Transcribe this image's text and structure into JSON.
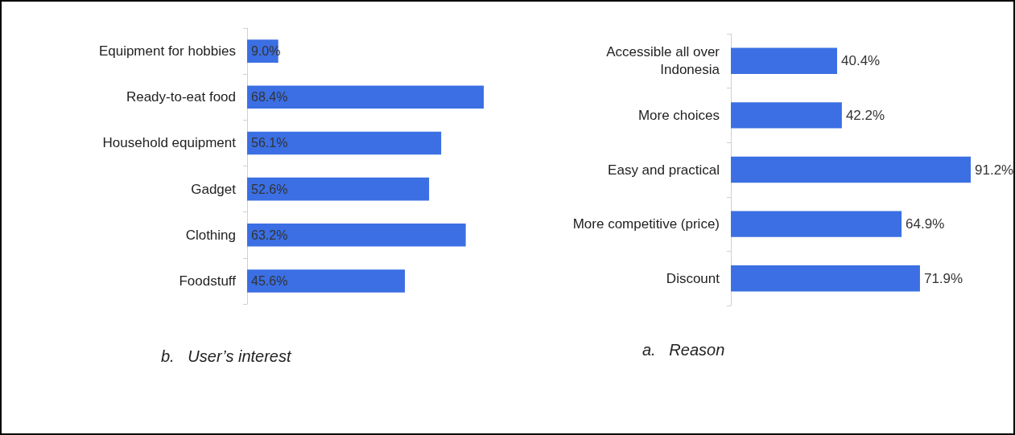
{
  "chart_data": [
    {
      "type": "bar",
      "orientation": "horizontal",
      "title": "b.   User’s interest",
      "categories": [
        "Equipment for hobbies",
        "Ready-to-eat food",
        "Household equipment",
        "Gadget",
        "Clothing",
        "Foodstuff"
      ],
      "values": [
        9.0,
        68.4,
        56.1,
        52.6,
        63.2,
        45.6
      ],
      "value_labels": [
        "9.0%",
        "68.4%",
        "56.1%",
        "52.6%",
        "63.2%",
        "45.6%"
      ],
      "color": "#3b6fe3",
      "tick_labels": "y"
    },
    {
      "type": "bar",
      "orientation": "horizontal",
      "title": "a.   Reason",
      "categories": [
        "Accessible all over\nIndonesia",
        "More choices",
        "Easy and practical",
        "More competitive (price)",
        "Discount"
      ],
      "values": [
        40.4,
        42.2,
        91.2,
        64.9,
        71.9
      ],
      "value_labels": [
        "40.4%",
        "42.2%",
        "91.2%",
        "64.9%",
        "71.9%"
      ],
      "color": "#3b6fe3",
      "tick_labels": "y"
    }
  ]
}
